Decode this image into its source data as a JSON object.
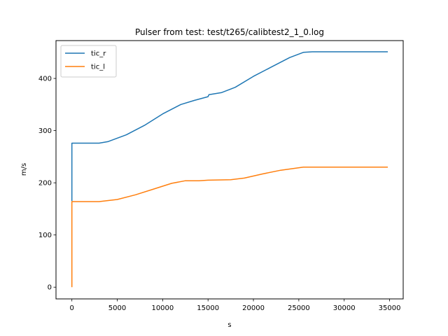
{
  "chart_data": {
    "type": "line",
    "title": "Pulser from test: test/t265/calibtest2_1_0.log",
    "xlabel": "s",
    "ylabel": "m/s",
    "xlim": [
      -1750,
      36500
    ],
    "ylim": [
      -22.5,
      472.5
    ],
    "xticks": [
      0,
      5000,
      10000,
      15000,
      20000,
      25000,
      30000,
      35000
    ],
    "yticks": [
      0,
      100,
      200,
      300,
      400
    ],
    "grid": false,
    "legend_position": "upper-left",
    "series": [
      {
        "name": "tic_r",
        "color": "#1f77b4",
        "x": [
          0,
          0,
          3000,
          4000,
          6000,
          8000,
          10000,
          12000,
          13500,
          15000,
          15100,
          16500,
          18000,
          20000,
          22000,
          24000,
          25500,
          26500,
          30000,
          34800
        ],
        "y": [
          165,
          276,
          276,
          279,
          292,
          310,
          332,
          350,
          358,
          365,
          369,
          373,
          383,
          404,
          422,
          440,
          450,
          451,
          451,
          451
        ]
      },
      {
        "name": "tic_l",
        "color": "#ff7f0e",
        "x": [
          0,
          0,
          3000,
          5000,
          7000,
          9000,
          11000,
          12500,
          14000,
          15000,
          17500,
          19000,
          21000,
          23000,
          25500,
          30000,
          34800
        ],
        "y": [
          0,
          164,
          164,
          168,
          177,
          188,
          199,
          204,
          204,
          205,
          206,
          209,
          217,
          224,
          230,
          230,
          230
        ]
      }
    ]
  }
}
